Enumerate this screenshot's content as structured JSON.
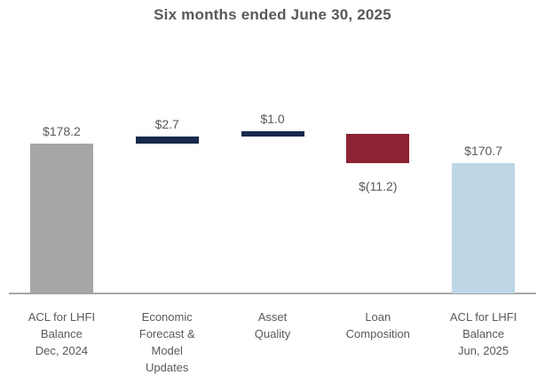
{
  "title": "Six months ended June 30, 2025",
  "chart_data": {
    "type": "bar",
    "subtype": "waterfall",
    "title": "Six months ended June 30, 2025",
    "categories": [
      "ACL for LHFI Balance Dec, 2024",
      "Economic Forecast & Model Updates",
      "Asset Quality",
      "Loan Composition",
      "ACL for LHFI Balance Jun, 2025"
    ],
    "category_lines": [
      "ACL for LHFI\nBalance\nDec, 2024",
      "Economic\nForecast &\nModel\nUpdates",
      "Asset\nQuality",
      "Loan\nComposition",
      "ACL for LHFI\nBalance\nJun, 2025"
    ],
    "bars": [
      {
        "category": "ACL for LHFI Balance Dec, 2024",
        "value": 178.2,
        "label": "$178.2",
        "role": "start_total",
        "color": "#A6A6A6",
        "label_position": "above"
      },
      {
        "category": "Economic Forecast & Model Updates",
        "value": 2.7,
        "label": "$2.7",
        "role": "increase",
        "color": "#16294C",
        "label_position": "above"
      },
      {
        "category": "Asset Quality",
        "value": 1.0,
        "label": "$1.0",
        "role": "increase",
        "color": "#16294C",
        "label_position": "above"
      },
      {
        "category": "Loan Composition",
        "value": -11.2,
        "label": "$(11.2)",
        "role": "decrease",
        "color": "#8B2332",
        "label_position": "below"
      },
      {
        "category": "ACL for LHFI Balance Jun, 2025",
        "value": 170.7,
        "label": "$170.7",
        "role": "end_total",
        "color": "#BDD7E6",
        "label_position": "above"
      }
    ],
    "xlabel": "",
    "ylabel": "",
    "ylim": [
      120.6,
      186.2
    ],
    "grid": false,
    "legend": false,
    "colors": {
      "start_total": "#A6A6A6",
      "increase": "#16294C",
      "decrease": "#8B2332",
      "end_total": "#BDD7E6",
      "axis_line": "#A6A6A6",
      "text": "#595959",
      "title_text": "#595959"
    }
  }
}
